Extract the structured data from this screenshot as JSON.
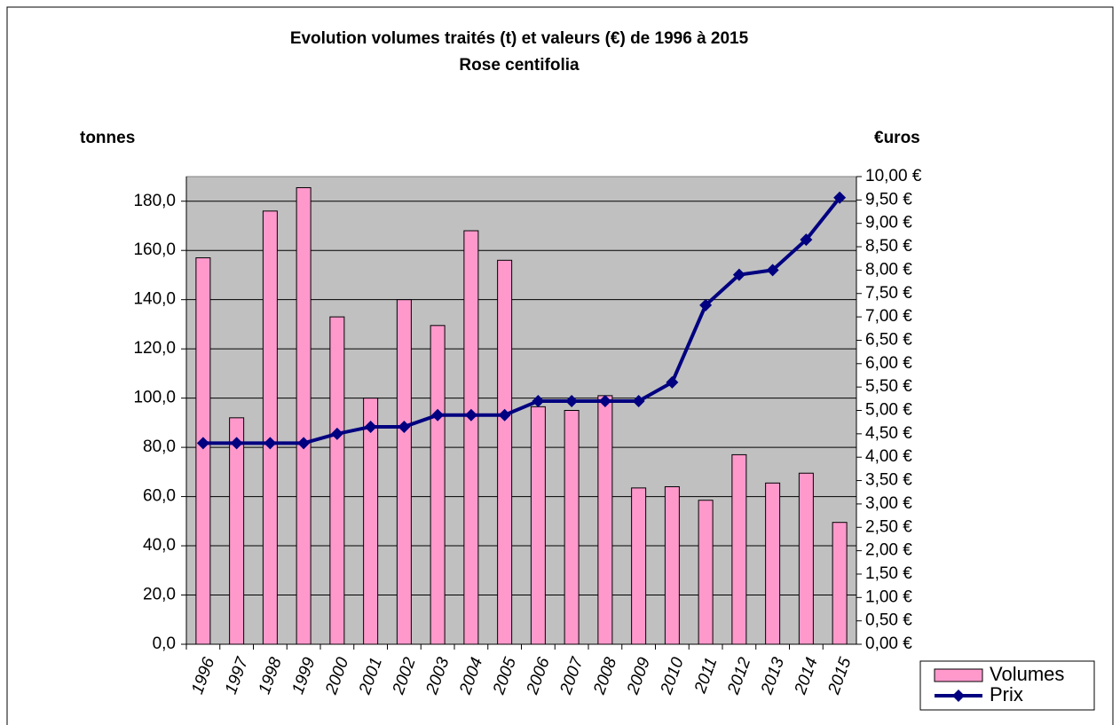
{
  "chart_data": {
    "type": "bar-line",
    "title": "Evolution volumes traités (t) et valeurs (€) de 1996 à 2015",
    "subtitle": "Rose centifolia",
    "y_label": "tonnes",
    "y2_label": "€uros",
    "categories": [
      "1996",
      "1997",
      "1998",
      "1999",
      "2000",
      "2001",
      "2002",
      "2003",
      "2004",
      "2005",
      "2006",
      "2007",
      "2008",
      "2009",
      "2010",
      "2011",
      "2012",
      "2013",
      "2014",
      "2015"
    ],
    "series": [
      {
        "name": "Volumes",
        "type": "bar",
        "color": "#ff99cc",
        "values": [
          157,
          92,
          176,
          185.5,
          133,
          100,
          140,
          129.5,
          168,
          156,
          96.5,
          95,
          101,
          63.5,
          64,
          58.5,
          77,
          65.5,
          69.5,
          49.5
        ]
      },
      {
        "name": "Prix",
        "type": "line",
        "axis": "y2",
        "color": "#000080",
        "values": [
          4.3,
          4.3,
          4.3,
          4.3,
          4.5,
          4.65,
          4.65,
          4.9,
          4.9,
          4.9,
          5.2,
          5.2,
          5.2,
          5.2,
          5.6,
          7.25,
          7.9,
          8.0,
          8.65,
          9.55
        ]
      }
    ],
    "ylim": [
      0,
      190
    ],
    "yticks": [
      {
        "value": 0,
        "label": "0,0"
      },
      {
        "value": 20,
        "label": "20,0"
      },
      {
        "value": 40,
        "label": "40,0"
      },
      {
        "value": 60,
        "label": "60,0"
      },
      {
        "value": 80,
        "label": "80,0"
      },
      {
        "value": 100,
        "label": "100,0"
      },
      {
        "value": 120,
        "label": "120,0"
      },
      {
        "value": 140,
        "label": "140,0"
      },
      {
        "value": 160,
        "label": "160,0"
      },
      {
        "value": 180,
        "label": "180,0"
      }
    ],
    "y2lim": [
      0,
      10
    ],
    "y2ticks": [
      {
        "value": 0,
        "label": "0,00 €"
      },
      {
        "value": 0.5,
        "label": "0,50 €"
      },
      {
        "value": 1,
        "label": "1,00 €"
      },
      {
        "value": 1.5,
        "label": "1,50 €"
      },
      {
        "value": 2,
        "label": "2,00 €"
      },
      {
        "value": 2.5,
        "label": "2,50 €"
      },
      {
        "value": 3,
        "label": "3,00 €"
      },
      {
        "value": 3.5,
        "label": "3,50 €"
      },
      {
        "value": 4,
        "label": "4,00 €"
      },
      {
        "value": 4.5,
        "label": "4,50 €"
      },
      {
        "value": 5,
        "label": "5,00 €"
      },
      {
        "value": 5.5,
        "label": "5,50 €"
      },
      {
        "value": 6,
        "label": "6,00 €"
      },
      {
        "value": 6.5,
        "label": "6,50 €"
      },
      {
        "value": 7,
        "label": "7,00 €"
      },
      {
        "value": 7.5,
        "label": "7,50 €"
      },
      {
        "value": 8,
        "label": "8,00 €"
      },
      {
        "value": 8.5,
        "label": "8,50 €"
      },
      {
        "value": 9,
        "label": "9,00 €"
      },
      {
        "value": 9.5,
        "label": "9,50 €"
      },
      {
        "value": 10,
        "label": "10,00 €"
      }
    ],
    "grid": true,
    "legend": "bottom-right"
  }
}
